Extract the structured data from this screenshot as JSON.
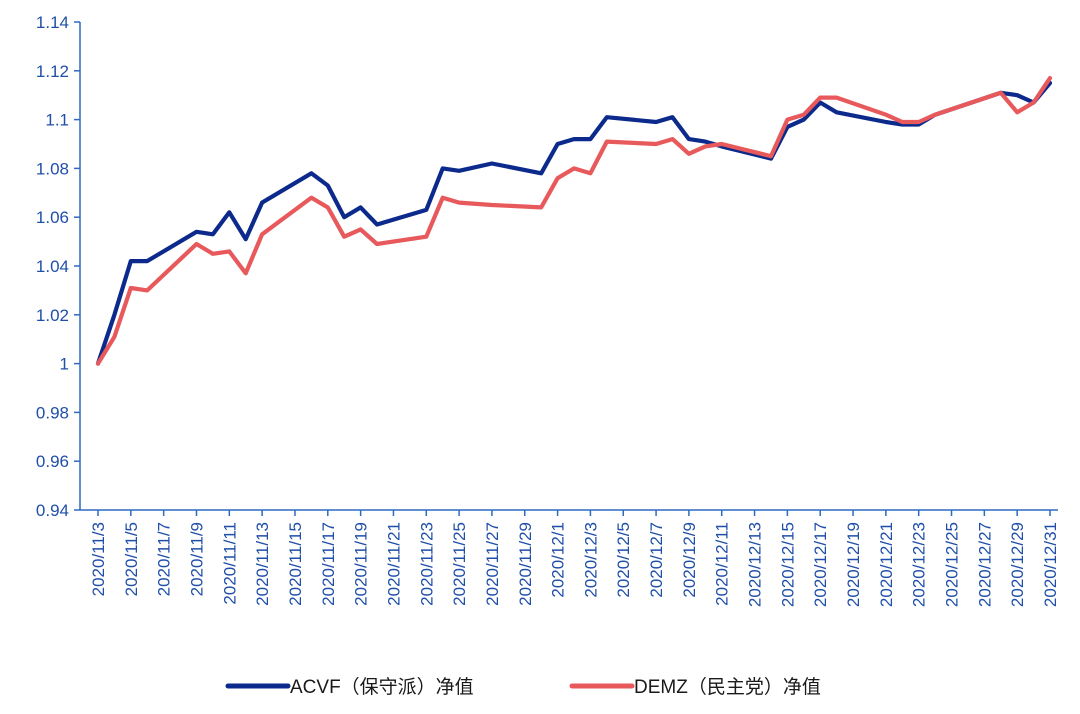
{
  "chart_data": {
    "type": "line",
    "title": "",
    "xlabel": "",
    "ylabel": "",
    "ylim": [
      0.94,
      1.14
    ],
    "yticks": [
      "0.94",
      "0.96",
      "0.98",
      "1",
      "1.02",
      "1.04",
      "1.06",
      "1.08",
      "1.1",
      "1.12",
      "1.14"
    ],
    "xtick_labels": [
      "2020/11/3",
      "2020/11/5",
      "2020/11/7",
      "2020/11/9",
      "2020/11/11",
      "2020/11/13",
      "2020/11/15",
      "2020/11/17",
      "2020/11/19",
      "2020/11/21",
      "2020/11/23",
      "2020/11/25",
      "2020/11/27",
      "2020/11/29",
      "2020/12/1",
      "2020/12/3",
      "2020/12/5",
      "2020/12/7",
      "2020/12/9",
      "2020/12/11",
      "2020/12/13",
      "2020/12/15",
      "2020/12/17",
      "2020/12/19",
      "2020/12/21",
      "2020/12/23",
      "2020/12/25",
      "2020/12/27",
      "2020/12/29",
      "2020/12/31"
    ],
    "grid": false,
    "legend_position": "bottom",
    "axis_color": "#2f6ac2",
    "series": [
      {
        "name": "ACVF（保守派）净值",
        "color": "#0b2a8c",
        "points": [
          [
            "2020/11/3",
            1.0
          ],
          [
            "2020/11/4",
            1.02
          ],
          [
            "2020/11/5",
            1.042
          ],
          [
            "2020/11/6",
            1.042
          ],
          [
            "2020/11/9",
            1.054
          ],
          [
            "2020/11/10",
            1.053
          ],
          [
            "2020/11/11",
            1.062
          ],
          [
            "2020/11/12",
            1.051
          ],
          [
            "2020/11/13",
            1.066
          ],
          [
            "2020/11/16",
            1.078
          ],
          [
            "2020/11/17",
            1.073
          ],
          [
            "2020/11/18",
            1.06
          ],
          [
            "2020/11/19",
            1.064
          ],
          [
            "2020/11/20",
            1.057
          ],
          [
            "2020/11/23",
            1.063
          ],
          [
            "2020/11/24",
            1.08
          ],
          [
            "2020/11/25",
            1.079
          ],
          [
            "2020/11/27",
            1.082
          ],
          [
            "2020/11/30",
            1.078
          ],
          [
            "2020/12/1",
            1.09
          ],
          [
            "2020/12/2",
            1.092
          ],
          [
            "2020/12/3",
            1.092
          ],
          [
            "2020/12/4",
            1.101
          ],
          [
            "2020/12/7",
            1.099
          ],
          [
            "2020/12/8",
            1.101
          ],
          [
            "2020/12/9",
            1.092
          ],
          [
            "2020/12/10",
            1.091
          ],
          [
            "2020/12/11",
            1.089
          ],
          [
            "2020/12/14",
            1.084
          ],
          [
            "2020/12/15",
            1.097
          ],
          [
            "2020/12/16",
            1.1
          ],
          [
            "2020/12/17",
            1.107
          ],
          [
            "2020/12/18",
            1.103
          ],
          [
            "2020/12/21",
            1.099
          ],
          [
            "2020/12/22",
            1.098
          ],
          [
            "2020/12/23",
            1.098
          ],
          [
            "2020/12/24",
            1.102
          ],
          [
            "2020/12/28",
            1.111
          ],
          [
            "2020/12/29",
            1.11
          ],
          [
            "2020/12/30",
            1.107
          ],
          [
            "2020/12/31",
            1.115
          ]
        ]
      },
      {
        "name": "DEMZ（民主党）净值",
        "color": "#e8595c",
        "points": [
          [
            "2020/11/3",
            1.0
          ],
          [
            "2020/11/4",
            1.011
          ],
          [
            "2020/11/5",
            1.031
          ],
          [
            "2020/11/6",
            1.03
          ],
          [
            "2020/11/9",
            1.049
          ],
          [
            "2020/11/10",
            1.045
          ],
          [
            "2020/11/11",
            1.046
          ],
          [
            "2020/11/12",
            1.037
          ],
          [
            "2020/11/13",
            1.053
          ],
          [
            "2020/11/16",
            1.068
          ],
          [
            "2020/11/17",
            1.064
          ],
          [
            "2020/11/18",
            1.052
          ],
          [
            "2020/11/19",
            1.055
          ],
          [
            "2020/11/20",
            1.049
          ],
          [
            "2020/11/23",
            1.052
          ],
          [
            "2020/11/24",
            1.068
          ],
          [
            "2020/11/25",
            1.066
          ],
          [
            "2020/11/27",
            1.065
          ],
          [
            "2020/11/30",
            1.064
          ],
          [
            "2020/12/1",
            1.076
          ],
          [
            "2020/12/2",
            1.08
          ],
          [
            "2020/12/3",
            1.078
          ],
          [
            "2020/12/4",
            1.091
          ],
          [
            "2020/12/7",
            1.09
          ],
          [
            "2020/12/8",
            1.092
          ],
          [
            "2020/12/9",
            1.086
          ],
          [
            "2020/12/10",
            1.089
          ],
          [
            "2020/12/11",
            1.09
          ],
          [
            "2020/12/14",
            1.085
          ],
          [
            "2020/12/15",
            1.1
          ],
          [
            "2020/12/16",
            1.102
          ],
          [
            "2020/12/17",
            1.109
          ],
          [
            "2020/12/18",
            1.109
          ],
          [
            "2020/12/21",
            1.102
          ],
          [
            "2020/12/22",
            1.099
          ],
          [
            "2020/12/23",
            1.099
          ],
          [
            "2020/12/24",
            1.102
          ],
          [
            "2020/12/28",
            1.111
          ],
          [
            "2020/12/29",
            1.103
          ],
          [
            "2020/12/30",
            1.107
          ],
          [
            "2020/12/31",
            1.117
          ]
        ]
      }
    ]
  }
}
